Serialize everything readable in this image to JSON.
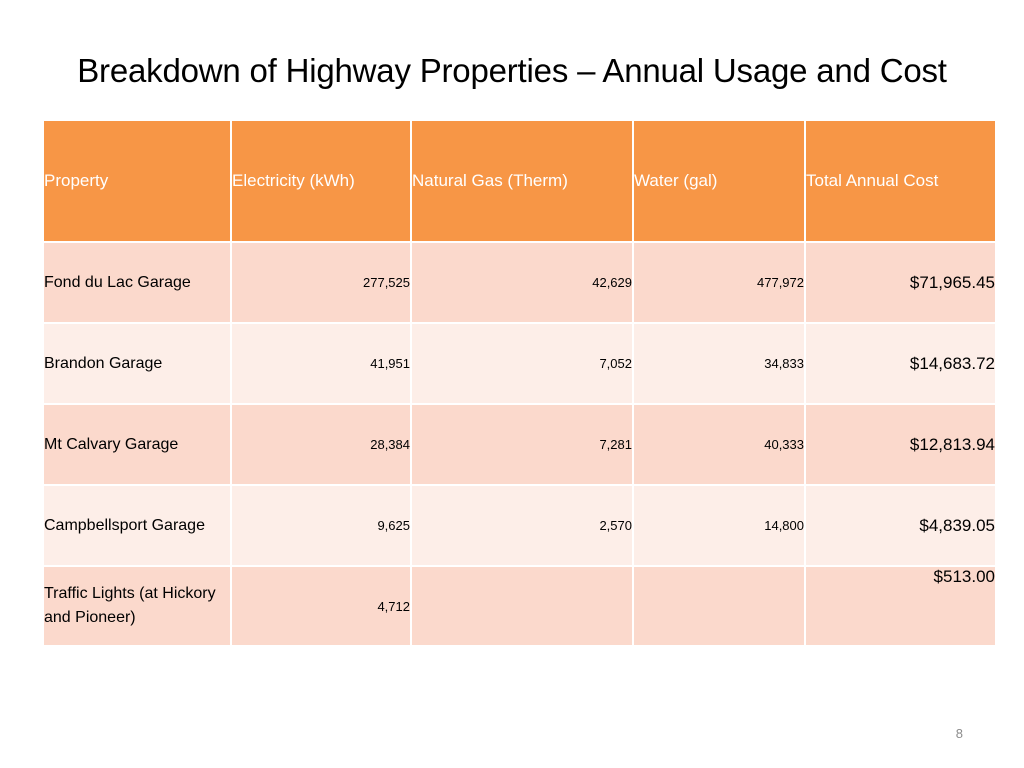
{
  "slide": {
    "title": "Breakdown of Highway Properties – Annual Usage and Cost",
    "page_number": "8"
  },
  "table": {
    "headers": [
      "Property",
      "Electricity (kWh)",
      "Natural  Gas (Therm)",
      "Water (gal)",
      "Total Annual Cost"
    ],
    "rows": [
      {
        "property": "Fond du Lac Garage",
        "electricity": "277,525",
        "gas": "42,629",
        "water": "477,972",
        "cost": "$71,965.45"
      },
      {
        "property": "Brandon Garage",
        "electricity": "41,951",
        "gas": "7,052",
        "water": "34,833",
        "cost": "$14,683.72"
      },
      {
        "property": "Mt Calvary Garage",
        "electricity": "28,384",
        "gas": "7,281",
        "water": "40,333",
        "cost": "$12,813.94"
      },
      {
        "property": "Campbellsport Garage",
        "electricity": "9,625",
        "gas": "2,570",
        "water": "14,800",
        "cost": "$4,839.05"
      },
      {
        "property": "Traffic Lights (at Hickory and Pioneer)",
        "electricity": "4,712",
        "gas": "",
        "water": "",
        "cost": "$513.00"
      }
    ]
  },
  "colors": {
    "header_bg": "#f79646",
    "row_odd": "#fbd9cc",
    "row_even": "#fdeee8"
  }
}
